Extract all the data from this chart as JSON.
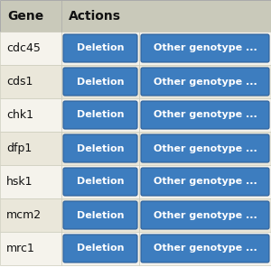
{
  "genes": [
    "cdc45",
    "cds1",
    "chk1",
    "dfp1",
    "hsk1",
    "mcm2",
    "mrc1"
  ],
  "header": [
    "Gene",
    "Actions"
  ],
  "button1_label": "Deletion",
  "button2_label": "Other genotype ...",
  "header_bg": "#c9c9ba",
  "row_bg_odd": "#f5f3ec",
  "row_bg_even": "#eae7da",
  "button_color": "#3d7dbf",
  "button_text_color": "#ffffff",
  "gene_text_color": "#111111",
  "header_text_color": "#111111",
  "border_color": "#ccccbb",
  "fig_bg": "#ffffff",
  "figwidth": 3.0,
  "figheight": 2.96,
  "dpi": 100
}
